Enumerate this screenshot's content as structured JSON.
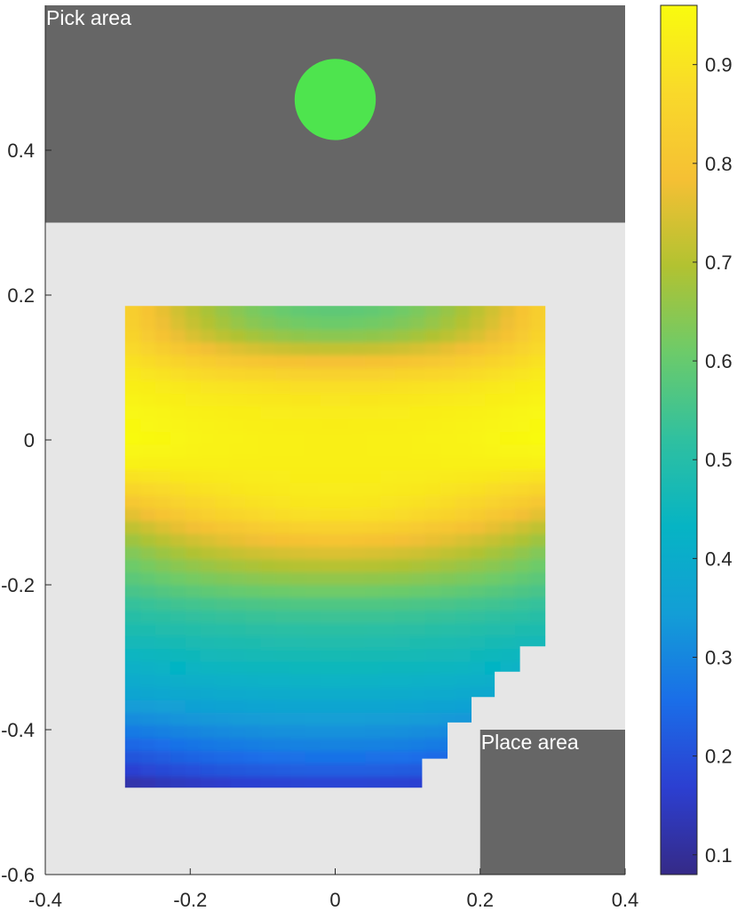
{
  "chart_data": {
    "type": "heatmap",
    "title": "",
    "xlabel": "",
    "ylabel": "",
    "xlim": [
      -0.4,
      0.4
    ],
    "ylim": [
      -0.6,
      0.6
    ],
    "x_ticks": [
      {
        "value": -0.4,
        "label": "-0.4"
      },
      {
        "value": -0.2,
        "label": "-0.2"
      },
      {
        "value": 0,
        "label": "0"
      },
      {
        "value": 0.2,
        "label": "0.2"
      },
      {
        "value": 0.4,
        "label": "0.4"
      }
    ],
    "y_ticks": [
      {
        "value": 0.4,
        "label": "0.4"
      },
      {
        "value": 0.2,
        "label": "0.2"
      },
      {
        "value": 0,
        "label": "0"
      },
      {
        "value": -0.2,
        "label": "-0.2"
      },
      {
        "value": -0.4,
        "label": "-0.4"
      },
      {
        "value": -0.6,
        "label": "-0.6"
      }
    ],
    "grid": false,
    "background_color": "#e6e6e6",
    "colormap": "parula",
    "colorbar": {
      "range": [
        0.08,
        0.96
      ],
      "ticks": [
        {
          "value": 0.1,
          "label": "0.1"
        },
        {
          "value": 0.2,
          "label": "0.2"
        },
        {
          "value": 0.3,
          "label": "0.3"
        },
        {
          "value": 0.4,
          "label": "0.4"
        },
        {
          "value": 0.5,
          "label": "0.5"
        },
        {
          "value": 0.6,
          "label": "0.6"
        },
        {
          "value": 0.7,
          "label": "0.7"
        },
        {
          "value": 0.8,
          "label": "0.8"
        },
        {
          "value": 0.9,
          "label": "0.9"
        }
      ],
      "colors": [
        "#352a87",
        "#2c3fd1",
        "#1a6ee8",
        "#139ed6",
        "#06b4c4",
        "#2fc0a0",
        "#6ccb6a",
        "#b2c231",
        "#f5c034",
        "#f9d92a",
        "#f9fb0e"
      ]
    },
    "regions": [
      {
        "name": "Pick area",
        "shape": "rect",
        "x": [
          -0.4,
          0.4
        ],
        "y": [
          0.3,
          0.6
        ],
        "color": "#666666"
      },
      {
        "name": "Place area",
        "shape": "rect",
        "x": [
          0.2,
          0.4
        ],
        "y": [
          -0.6,
          -0.4
        ],
        "color": "#666666"
      }
    ],
    "markers": [
      {
        "name": "pick-object",
        "shape": "circle",
        "x": 0,
        "y": 0.47,
        "radius": 0.056,
        "color": "#4ee44e"
      }
    ],
    "field": {
      "extent_x": [
        -0.29,
        0.29
      ],
      "extent_y": [
        -0.48,
        0.185
      ],
      "staircase_corner": [
        {
          "x": 0.29,
          "y": -0.285
        },
        {
          "x": 0.255,
          "y": -0.32
        },
        {
          "x": 0.22,
          "y": -0.355
        },
        {
          "x": 0.188,
          "y": -0.39
        },
        {
          "x": 0.155,
          "y": -0.44
        },
        {
          "x": 0.12,
          "y": -0.48
        }
      ],
      "vertical_profile": [
        {
          "y": 0.185,
          "center": 0.58,
          "edge": 0.85
        },
        {
          "y": 0.15,
          "center": 0.62,
          "edge": 0.86
        },
        {
          "y": 0.11,
          "center": 0.78,
          "edge": 0.9
        },
        {
          "y": 0.08,
          "center": 0.88,
          "edge": 0.93
        },
        {
          "y": 0.04,
          "center": 0.92,
          "edge": 0.95
        },
        {
          "y": 0.0,
          "center": 0.93,
          "edge": 0.96
        },
        {
          "y": -0.03,
          "center": 0.93,
          "edge": 0.94
        },
        {
          "y": -0.07,
          "center": 0.92,
          "edge": 0.85
        },
        {
          "y": -0.1,
          "center": 0.9,
          "edge": 0.76
        },
        {
          "y": -0.13,
          "center": 0.82,
          "edge": 0.68
        },
        {
          "y": -0.16,
          "center": 0.74,
          "edge": 0.62
        },
        {
          "y": -0.19,
          "center": 0.66,
          "edge": 0.58
        },
        {
          "y": -0.23,
          "center": 0.56,
          "edge": 0.52
        },
        {
          "y": -0.27,
          "center": 0.5,
          "edge": 0.47
        },
        {
          "y": -0.31,
          "center": 0.46,
          "edge": 0.42
        },
        {
          "y": -0.35,
          "center": 0.4,
          "edge": 0.37
        },
        {
          "y": -0.39,
          "center": 0.34,
          "edge": 0.3
        },
        {
          "y": -0.43,
          "center": 0.28,
          "edge": 0.22
        },
        {
          "y": -0.46,
          "center": 0.22,
          "edge": 0.16
        },
        {
          "y": -0.48,
          "center": 0.16,
          "edge": 0.1
        }
      ]
    }
  }
}
